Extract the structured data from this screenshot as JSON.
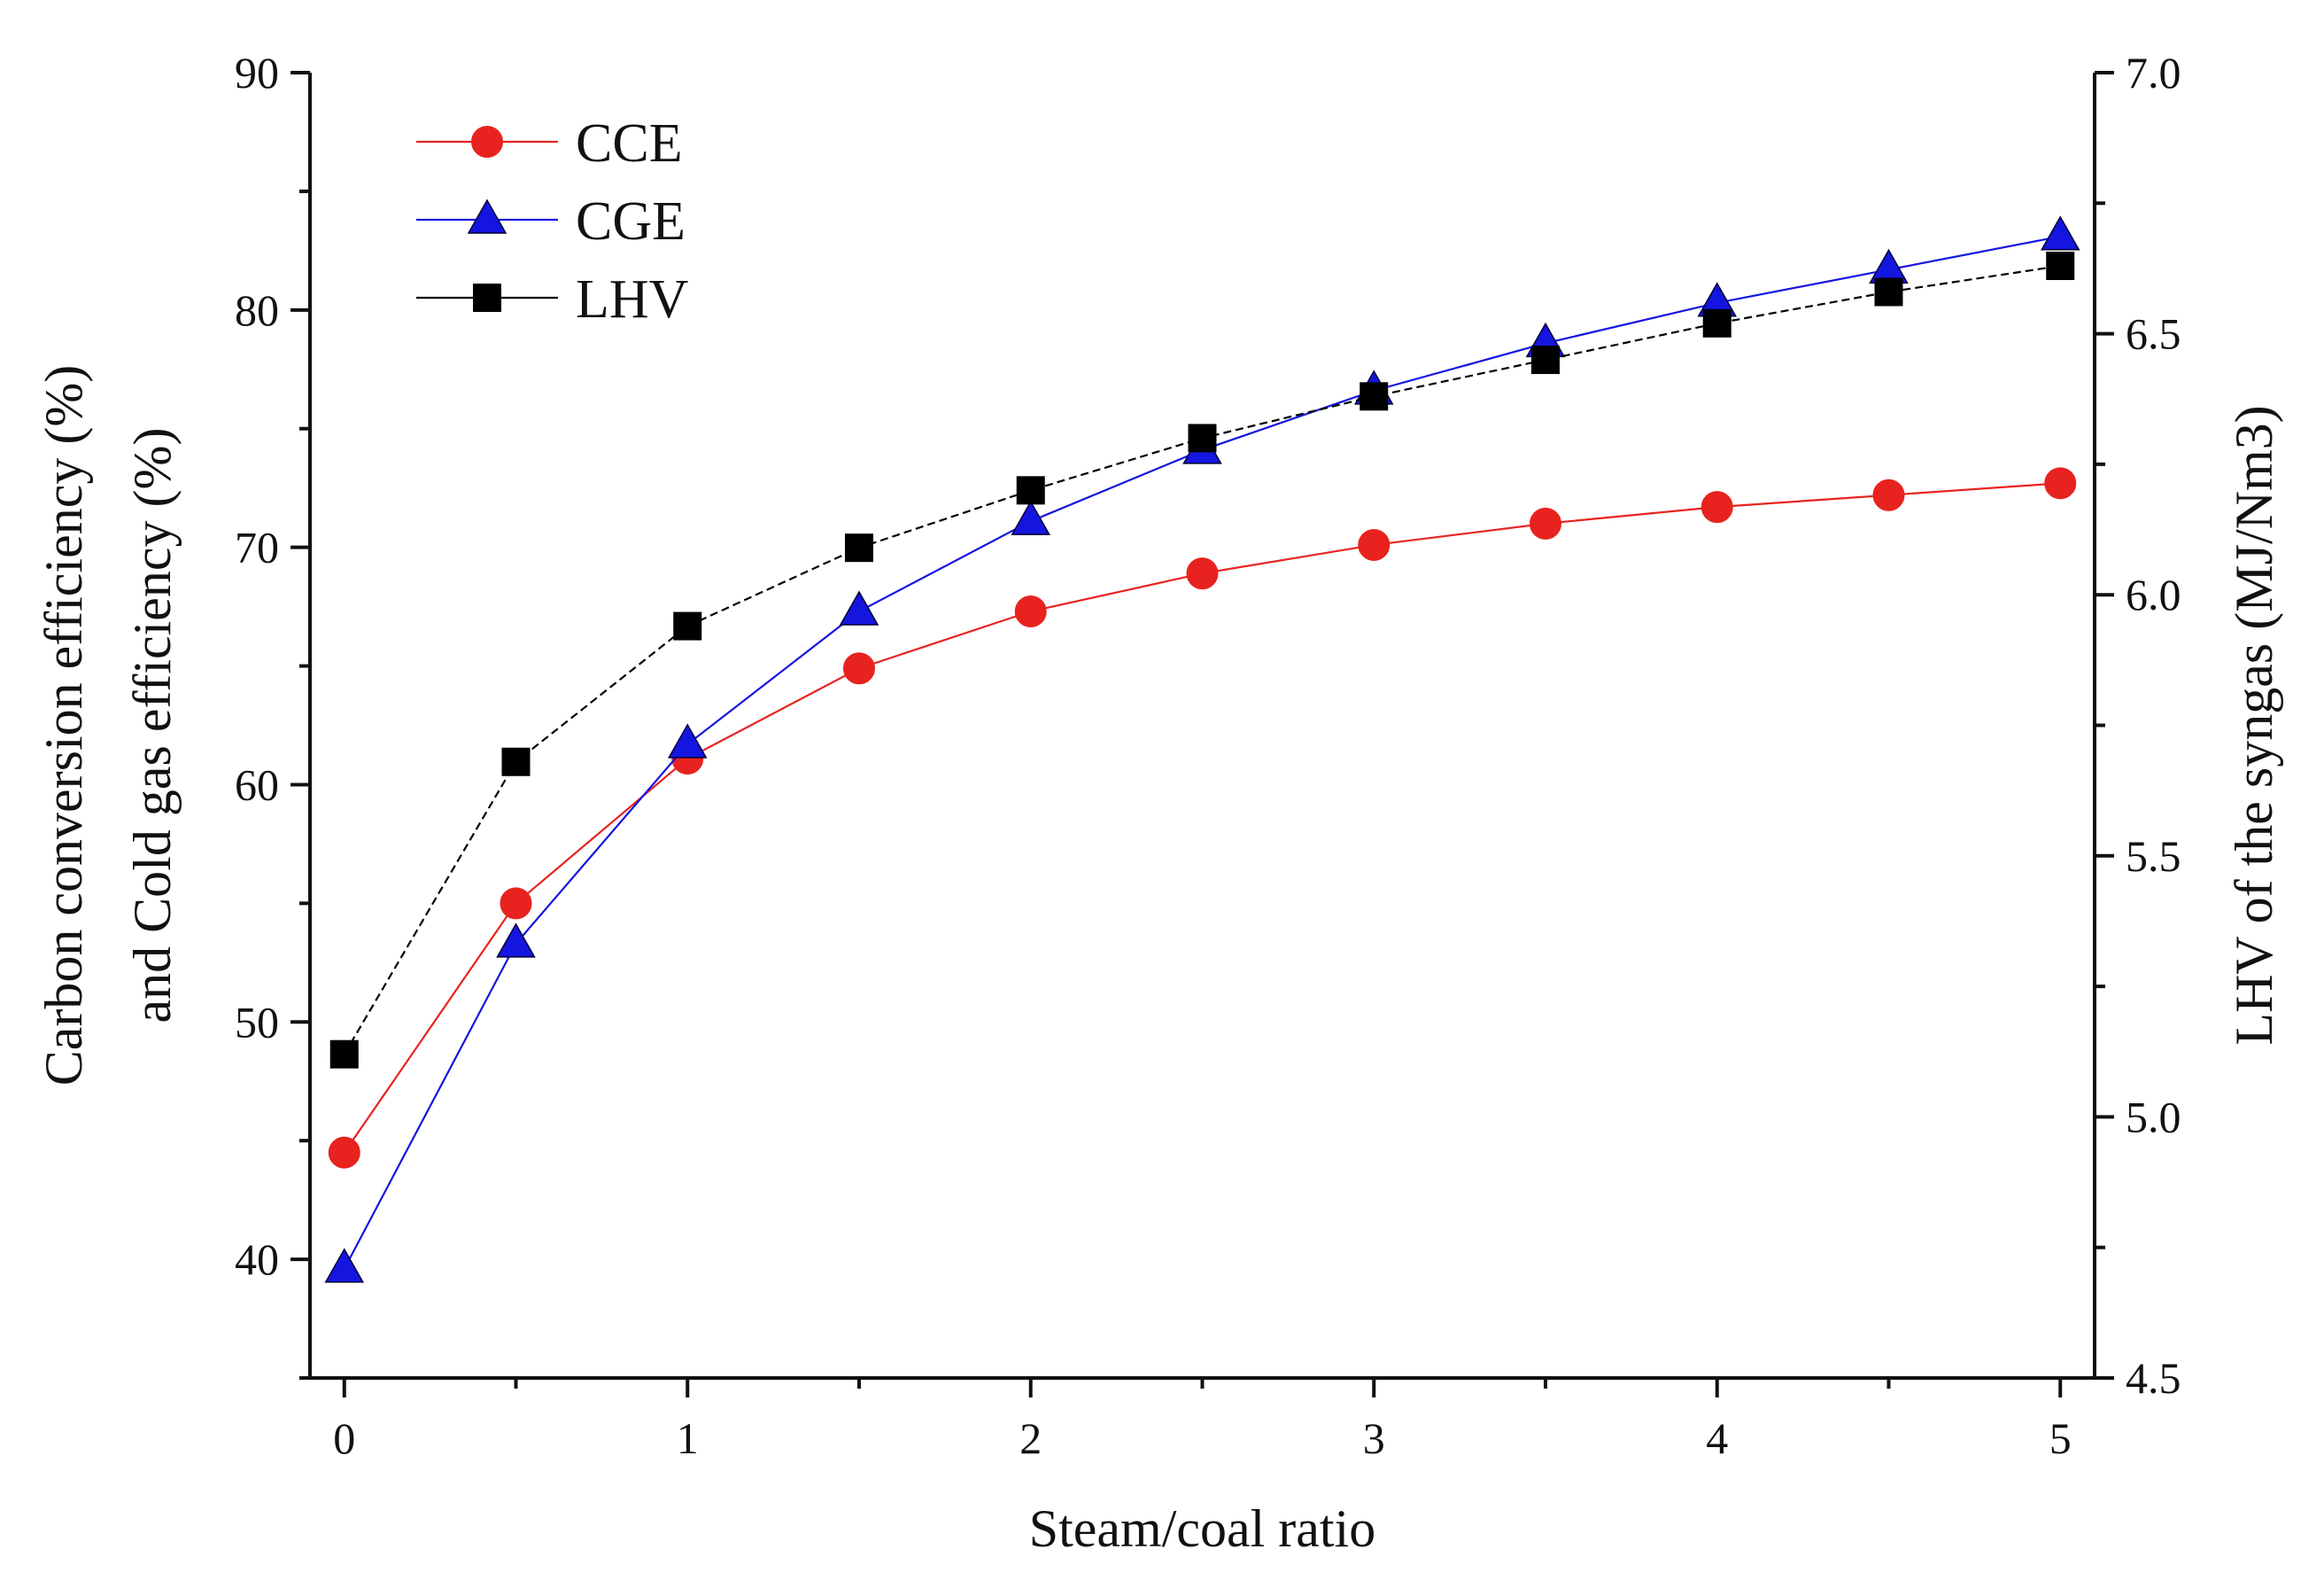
{
  "chart_data": {
    "type": "line",
    "xlabel": "Steam/coal ratio",
    "ylabel_lines": [
      "Carbon conversion efficiency (%)",
      "and Cold gas efficiency (%)"
    ],
    "y2label": "LHV of the syngas (MJ/Nm3)",
    "xlim": [
      -0.1,
      5.1
    ],
    "ylim": [
      35,
      90
    ],
    "y2lim": [
      4.5,
      7.0
    ],
    "x_ticks": [
      0,
      1,
      2,
      3,
      4,
      5
    ],
    "x_tick_labels": [
      "0",
      "1",
      "2",
      "3",
      "4",
      "5"
    ],
    "y_ticks": [
      40,
      50,
      60,
      70,
      80,
      90
    ],
    "y_tick_labels": [
      "40",
      "50",
      "60",
      "70",
      "80",
      "90"
    ],
    "y2_ticks": [
      4.5,
      5.0,
      5.5,
      6.0,
      6.5,
      7.0
    ],
    "y2_tick_labels": [
      "4.5",
      "5.0",
      "5.5",
      "6.0",
      "6.5",
      "7.0"
    ],
    "legend_position": "top-left",
    "grid": false,
    "x": [
      0,
      0.5,
      1,
      1.5,
      2,
      2.5,
      3,
      3.5,
      4,
      4.5,
      5
    ],
    "series": [
      {
        "name": "CCE",
        "axis": "left",
        "color": "#e8231f",
        "marker": "circle",
        "values": [
          44.5,
          55.0,
          61.1,
          64.9,
          67.3,
          68.9,
          70.1,
          71.0,
          71.7,
          72.2,
          72.7
        ]
      },
      {
        "name": "CGE",
        "axis": "left",
        "color": "#1515e0",
        "marker": "triangle",
        "values": [
          39.6,
          53.3,
          61.7,
          67.3,
          71.1,
          74.1,
          76.6,
          78.6,
          80.3,
          81.7,
          83.1
        ]
      },
      {
        "name": "LHV",
        "axis": "right",
        "color": "#000000",
        "marker": "square",
        "values": [
          5.12,
          5.68,
          5.94,
          6.09,
          6.2,
          6.3,
          6.38,
          6.45,
          6.52,
          6.58,
          6.63
        ]
      }
    ]
  }
}
